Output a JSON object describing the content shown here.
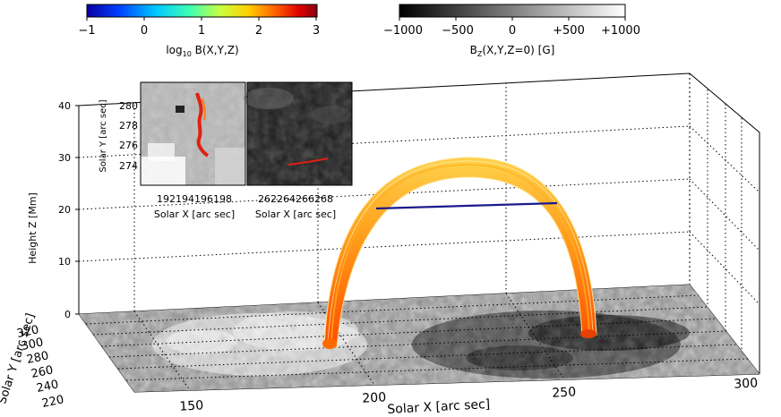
{
  "colorbar_left": {
    "ticks": [
      "−1",
      "0",
      "1",
      "2",
      "3"
    ],
    "label_prefix": "log",
    "label_sub": "10",
    "label_suffix": " B(X,Y,Z)"
  },
  "colorbar_right": {
    "ticks": [
      "−1000",
      "−500",
      "0",
      "+500",
      "+1000"
    ],
    "label_prefix": "B",
    "label_sub": "Z",
    "label_suffix": "(X,Y,Z=0)  [G]"
  },
  "axes3d": {
    "z_label": "Height Z [Mm]",
    "z_ticks": [
      "0",
      "10",
      "20",
      "30",
      "40"
    ],
    "y_label": "Solar Y [arc sec]",
    "y_ticks": [
      "220",
      "240",
      "260",
      "280",
      "300",
      "320"
    ],
    "x_label": "Solar X [arc sec]",
    "x_ticks": [
      "150",
      "200",
      "250",
      "300"
    ]
  },
  "inset_left": {
    "y_label": "Solar Y [arc sec]",
    "y_ticks": [
      "280",
      "278",
      "276",
      "274"
    ],
    "x_ticks": "192194196198",
    "x_label": "Solar X [arc sec]"
  },
  "inset_right": {
    "x_ticks": "262264266268",
    "x_label": "Solar X [arc sec]"
  },
  "colors": {
    "loop_base": "#ff5a00",
    "loop_top": "#ffd24a",
    "loop_line": "#1a1a8c",
    "inset_trace": "#e02010"
  }
}
